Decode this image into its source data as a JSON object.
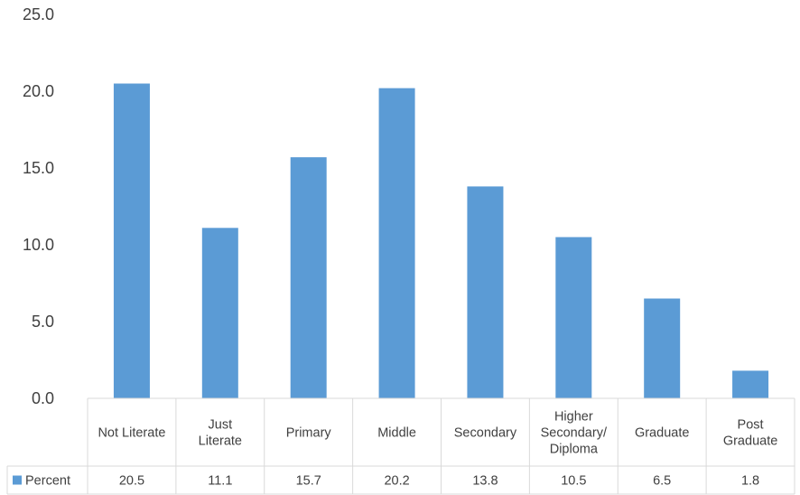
{
  "chart_data": {
    "type": "bar",
    "categories": [
      [
        "Not Literate"
      ],
      [
        "Just",
        "Literate"
      ],
      [
        "Primary"
      ],
      [
        "Middle"
      ],
      [
        "Secondary"
      ],
      [
        "Higher",
        "Secondary/",
        "Diploma"
      ],
      [
        "Graduate"
      ],
      [
        "Post",
        "Graduate"
      ]
    ],
    "series": [
      {
        "name": "Percent",
        "values": [
          20.5,
          11.1,
          15.7,
          20.2,
          13.8,
          10.5,
          6.5,
          1.8
        ],
        "value_labels": [
          "20.5",
          "11.1",
          "15.7",
          "20.2",
          "13.8",
          "10.5",
          "6.5",
          "1.8"
        ],
        "color": "#5B9BD5"
      }
    ],
    "y_ticks": [
      "0.0",
      "5.0",
      "10.0",
      "15.0",
      "20.0",
      "25.0"
    ],
    "ylim": [
      0,
      25
    ],
    "grid": false,
    "legend": "data-table-left",
    "title": "",
    "xlabel": "",
    "ylabel": ""
  }
}
